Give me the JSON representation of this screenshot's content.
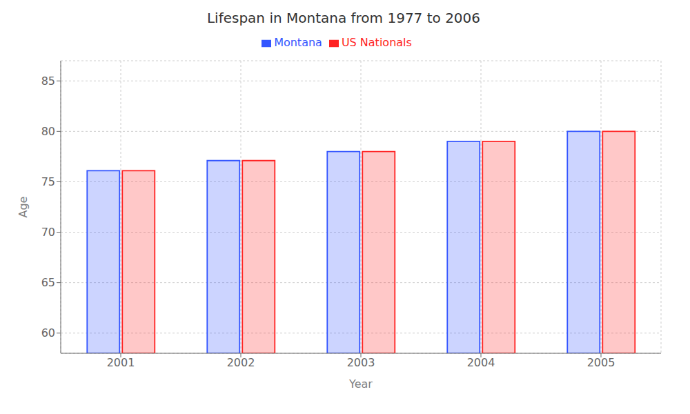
{
  "chart_data": {
    "type": "bar",
    "title": "Lifespan in Montana from 1977 to 2006",
    "x_label": "Year",
    "y_label": "Age",
    "categories": [
      "2001",
      "2002",
      "2003",
      "2004",
      "2005"
    ],
    "series": [
      {
        "name": "Montana",
        "color": "#3355ff",
        "values": [
          76.1,
          77.1,
          78.0,
          79.0,
          80.0
        ]
      },
      {
        "name": "US Nationals",
        "color": "#ff2222",
        "values": [
          76.1,
          77.1,
          78.0,
          79.0,
          80.0
        ]
      }
    ],
    "ylim": [
      58,
      87
    ],
    "yticks": [
      60,
      65,
      70,
      75,
      80,
      85
    ],
    "grid": true,
    "legend": "top"
  }
}
